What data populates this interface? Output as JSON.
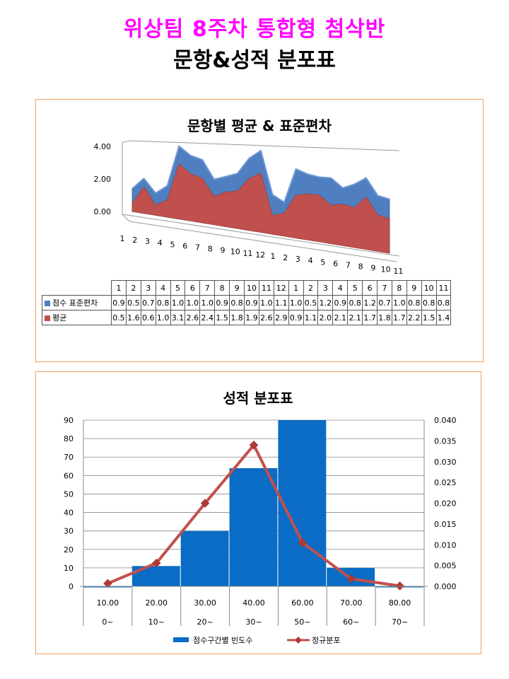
{
  "page": {
    "title": "위상팀 8주차 통합형 첨삭반",
    "subtitle": "문항&성적 분포표"
  },
  "colors": {
    "stddev": "#4f7fc0",
    "mean": "#c0504d",
    "bar": "#0a6cc4",
    "line": "#c0504d",
    "panel_border": "#f0a060"
  },
  "chart_data": [
    {
      "type": "area",
      "title": "문항별 평균 & 표준편차",
      "categories": [
        "1",
        "2",
        "3",
        "4",
        "5",
        "6",
        "7",
        "8",
        "9",
        "10",
        "11",
        "12",
        "1",
        "2",
        "3",
        "4",
        "5",
        "6",
        "7",
        "8",
        "9",
        "10",
        "11"
      ],
      "series": [
        {
          "name": "점수 표준편차",
          "values": [
            0.9,
            0.5,
            0.7,
            0.8,
            1.0,
            1.0,
            1.0,
            0.9,
            0.8,
            0.9,
            1.0,
            1.1,
            1.0,
            0.5,
            1.2,
            0.9,
            0.8,
            1.2,
            0.7,
            1.0,
            0.8,
            0.8,
            0.8
          ]
        },
        {
          "name": "평균",
          "values": [
            0.5,
            1.6,
            0.6,
            1.0,
            3.1,
            2.6,
            2.4,
            1.5,
            1.8,
            1.9,
            2.6,
            2.9,
            0.9,
            1.1,
            2.0,
            2.1,
            2.1,
            1.7,
            1.8,
            1.7,
            2.2,
            1.5,
            1.4
          ]
        }
      ],
      "y_ticks": [
        "0.00",
        "2.00",
        "4.00"
      ],
      "ylim": [
        0,
        4
      ],
      "stacked": true,
      "legend": "data-table"
    },
    {
      "type": "bar",
      "title": "성적 분포표",
      "categories": [
        "10.00",
        "20.00",
        "30.00",
        "40.00",
        "60.00",
        "70.00",
        "80.00"
      ],
      "sub_categories": [
        "0~",
        "10~",
        "20~",
        "30~",
        "50~",
        "60~",
        "70~"
      ],
      "series": [
        {
          "name": "점수구간별 빈도수",
          "type": "bar",
          "axis": "left",
          "values": [
            0,
            11,
            30,
            64,
            90,
            10,
            0
          ]
        },
        {
          "name": "정규분포",
          "type": "line",
          "axis": "right",
          "values": [
            0.0007,
            0.0056,
            0.02,
            0.034,
            0.0105,
            0.0018,
            0.0001
          ]
        }
      ],
      "ylim_left": [
        0,
        90
      ],
      "ylim_right": [
        0,
        0.04
      ],
      "y_left_ticks": [
        "0",
        "10",
        "20",
        "30",
        "40",
        "50",
        "60",
        "70",
        "80",
        "90"
      ],
      "y_right_ticks": [
        "0.000",
        "0.005",
        "0.010",
        "0.015",
        "0.020",
        "0.025",
        "0.030",
        "0.035",
        "0.040"
      ],
      "legend": "bottom"
    }
  ]
}
